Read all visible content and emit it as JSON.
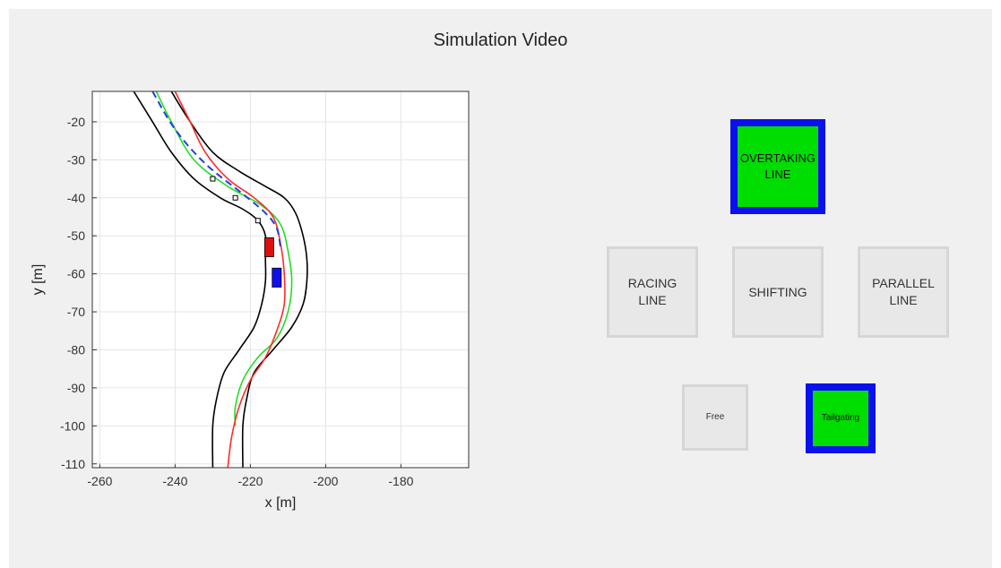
{
  "title": "Simulation Video",
  "plot": {
    "xlabel": "x [m]",
    "ylabel": "y [m]",
    "xlim": [
      -262,
      -162
    ],
    "ylim": [
      -111,
      -12
    ],
    "xticks": [
      -260,
      -240,
      -220,
      -200,
      -180
    ],
    "yticks": [
      -20,
      -30,
      -40,
      -50,
      -60,
      -70,
      -80,
      -90,
      -100,
      -110
    ],
    "colors": {
      "boundary": "#000000",
      "racing_line": "#ff2a2a",
      "overtaking_line": "#22dd22",
      "planned_path": "#1f3fe0",
      "ego_vehicle": "#1010ee",
      "opponent_vehicle": "#dd1010",
      "grid": "#e6e6e6"
    },
    "left_boundary": [
      [
        -251,
        -12
      ],
      [
        -246,
        -20
      ],
      [
        -241,
        -28
      ],
      [
        -235,
        -35
      ],
      [
        -228,
        -40
      ],
      [
        -222,
        -43
      ],
      [
        -218,
        -46
      ],
      [
        -216,
        -50
      ],
      [
        -216,
        -56
      ],
      [
        -216,
        -62
      ],
      [
        -217,
        -68
      ],
      [
        -219,
        -74
      ],
      [
        -223,
        -80
      ],
      [
        -227,
        -86
      ],
      [
        -229,
        -93
      ],
      [
        -230,
        -100
      ],
      [
        -230,
        -111
      ]
    ],
    "right_boundary": [
      [
        -241,
        -12
      ],
      [
        -236,
        -20
      ],
      [
        -230,
        -28
      ],
      [
        -223,
        -33
      ],
      [
        -216,
        -37
      ],
      [
        -211,
        -40
      ],
      [
        -208,
        -44
      ],
      [
        -206,
        -50
      ],
      [
        -205,
        -56
      ],
      [
        -205,
        -62
      ],
      [
        -206,
        -68
      ],
      [
        -209,
        -74
      ],
      [
        -214,
        -80
      ],
      [
        -219,
        -86
      ],
      [
        -221,
        -93
      ],
      [
        -222,
        -100
      ],
      [
        -222,
        -111
      ]
    ],
    "racing_line": [
      [
        -240,
        -12
      ],
      [
        -236,
        -20
      ],
      [
        -232,
        -28
      ],
      [
        -226,
        -35
      ],
      [
        -219,
        -40
      ],
      [
        -214,
        -45
      ],
      [
        -212,
        -52
      ],
      [
        -211,
        -60
      ],
      [
        -211,
        -68
      ],
      [
        -213,
        -75
      ],
      [
        -216,
        -82
      ],
      [
        -220,
        -88
      ],
      [
        -223,
        -95
      ],
      [
        -225,
        -103
      ],
      [
        -226,
        -111
      ]
    ],
    "overtaking_line": [
      [
        -245,
        -12
      ],
      [
        -241,
        -20
      ],
      [
        -235,
        -30
      ],
      [
        -226,
        -37
      ],
      [
        -217,
        -42
      ],
      [
        -212,
        -47
      ],
      [
        -210,
        -54
      ],
      [
        -209,
        -62
      ],
      [
        -210,
        -70
      ],
      [
        -213,
        -77
      ],
      [
        -218,
        -82
      ],
      [
        -222,
        -88
      ],
      [
        -224,
        -95
      ],
      [
        -224,
        -100
      ]
    ],
    "planned_path": [
      [
        -246,
        -12
      ],
      [
        -240,
        -22
      ],
      [
        -232,
        -31
      ],
      [
        -222,
        -39
      ],
      [
        -216,
        -44
      ],
      [
        -213,
        -48
      ],
      [
        -212,
        -53
      ]
    ],
    "markers": [
      [
        -230,
        -35
      ],
      [
        -224,
        -40
      ],
      [
        -218,
        -46
      ],
      [
        -215,
        -54
      ]
    ],
    "ego_vehicle": {
      "x": -213,
      "y": -61,
      "w": 2.4,
      "h": 5
    },
    "opponent_vehicle": {
      "x": -215,
      "y": -53,
      "w": 2.4,
      "h": 5
    }
  },
  "modes": [
    {
      "id": "overtaking",
      "label": "OVERTAKING\nLINE",
      "active": true
    },
    {
      "id": "racing",
      "label": "RACING\nLINE",
      "active": false
    },
    {
      "id": "shifting",
      "label": "SHIFTING",
      "active": false
    },
    {
      "id": "parallel",
      "label": "PARALLEL\nLINE",
      "active": false
    },
    {
      "id": "free",
      "label": "Free",
      "active": false
    },
    {
      "id": "tailgating",
      "label": "Tailgating",
      "active": true
    }
  ]
}
